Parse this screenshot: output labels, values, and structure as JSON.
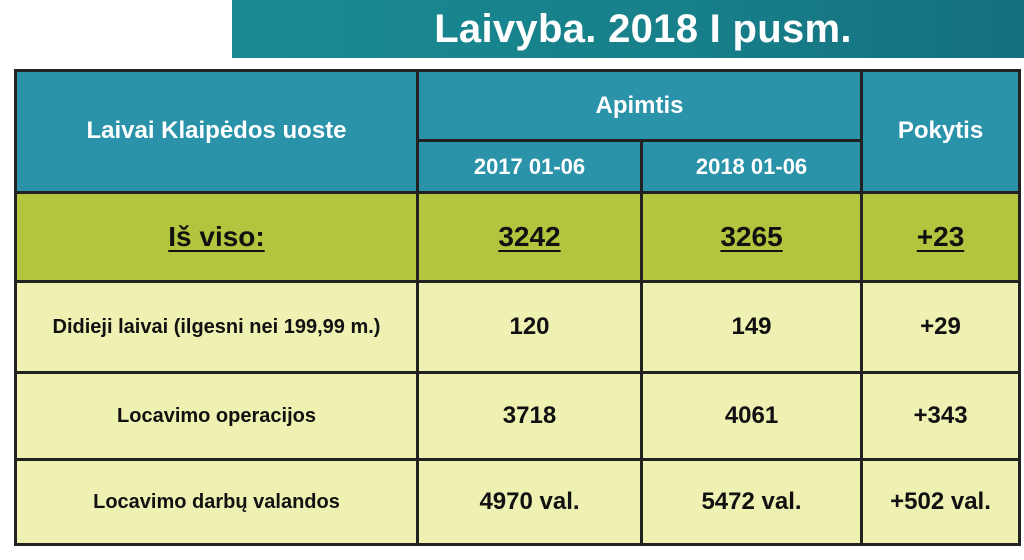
{
  "title": "Laivyba. 2018 I pusm.",
  "table": {
    "header": {
      "col_label": "Laivai Klaipėdos uoste",
      "group": "Apimtis",
      "period_1": "2017 01-06",
      "period_2": "2018 01-06",
      "change": "Pokytis"
    },
    "total": {
      "label": "Iš viso:",
      "v2017": "3242",
      "v2018": "3265",
      "change": "+23"
    },
    "rows": [
      {
        "label": "Didieji laivai (ilgesni nei 199,99 m.)",
        "v2017": "120",
        "v2018": "149",
        "change": "+29"
      },
      {
        "label": "Locavimo operacijos",
        "v2017": "3718",
        "v2018": "4061",
        "change": "+343"
      },
      {
        "label": "Locavimo darbų valandos",
        "v2017": "4970 val.",
        "v2018": "5472 val.",
        "change": "+502 val."
      }
    ]
  },
  "colors": {
    "title_bg": "#177f89",
    "header_bg": "#2a93aa",
    "total_bg": "#b3c43e",
    "row_bg": "#eef1b1",
    "border": "#222222"
  }
}
